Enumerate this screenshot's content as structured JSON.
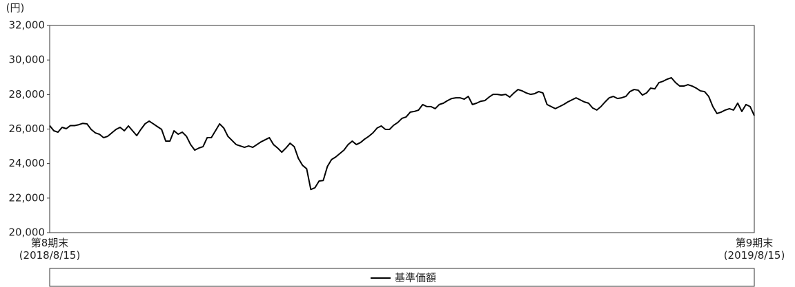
{
  "chart_data": {
    "type": "line",
    "y_label": "(円)",
    "categories": [
      "第8期末\n(2018/8/15)",
      null,
      null,
      null,
      null,
      null,
      null,
      null,
      null,
      null,
      null,
      null,
      null,
      null,
      null,
      null,
      null,
      null,
      null,
      null,
      null,
      null,
      null,
      null,
      null,
      null,
      null,
      null,
      null,
      null,
      null,
      null,
      null,
      null,
      null,
      null,
      null,
      null,
      null,
      null,
      null,
      null,
      null,
      null,
      null,
      null,
      null,
      null,
      null,
      null,
      null,
      null,
      null,
      null,
      null,
      null,
      null,
      null,
      null,
      null,
      null,
      null,
      null,
      null,
      null,
      null,
      null,
      null,
      null,
      null,
      null,
      null,
      null,
      null,
      null,
      null,
      null,
      null,
      null,
      null,
      null,
      null,
      null,
      null,
      null,
      null,
      null,
      null,
      null,
      null,
      null,
      null,
      null,
      null,
      null,
      null,
      null,
      null,
      null,
      null,
      null,
      null,
      null,
      null,
      null,
      null,
      null,
      null,
      null,
      null,
      null,
      null,
      null,
      null,
      null,
      null,
      null,
      null,
      null,
      null,
      null,
      null,
      null,
      null,
      null,
      null,
      null,
      null,
      null,
      null,
      null,
      null,
      null,
      null,
      null,
      null,
      null,
      null,
      null,
      null,
      null,
      null,
      null,
      null,
      null,
      null,
      null,
      null,
      null,
      null,
      null,
      null,
      null,
      null,
      null,
      null,
      null,
      null,
      null,
      null,
      null,
      null,
      null,
      null,
      null,
      null,
      null,
      null,
      null,
      null,
      "第9期末\n(2019/8/15)"
    ],
    "series": [
      {
        "name": "基準価額",
        "color": "#000000",
        "values": [
          26200,
          25900,
          25820,
          26100,
          26020,
          26200,
          26200,
          26250,
          26330,
          26300,
          25980,
          25780,
          25700,
          25500,
          25580,
          25780,
          25980,
          26100,
          25900,
          26180,
          25900,
          25620,
          25980,
          26300,
          26460,
          26300,
          26140,
          25980,
          25300,
          25300,
          25900,
          25700,
          25820,
          25580,
          25100,
          24780,
          24900,
          24980,
          25500,
          25500,
          25900,
          26300,
          26060,
          25580,
          25340,
          25100,
          25020,
          24940,
          25020,
          24940,
          25100,
          25260,
          25380,
          25500,
          25100,
          24900,
          24660,
          24900,
          25180,
          24980,
          24300,
          23900,
          23700,
          22500,
          22600,
          22990,
          23020,
          23830,
          24230,
          24380,
          24580,
          24780,
          25100,
          25300,
          25100,
          25220,
          25420,
          25580,
          25780,
          26060,
          26180,
          25980,
          25980,
          26220,
          26380,
          26620,
          26700,
          26980,
          27020,
          27100,
          27420,
          27300,
          27300,
          27180,
          27420,
          27500,
          27650,
          27770,
          27810,
          27810,
          27730,
          27890,
          27420,
          27500,
          27610,
          27650,
          27850,
          28010,
          28010,
          27970,
          28010,
          27850,
          28090,
          28290,
          28210,
          28090,
          28010,
          28050,
          28170,
          28090,
          27420,
          27300,
          27180,
          27300,
          27420,
          27570,
          27690,
          27810,
          27690,
          27570,
          27500,
          27220,
          27100,
          27300,
          27570,
          27810,
          27890,
          27770,
          27810,
          27890,
          28170,
          28290,
          28250,
          27970,
          28090,
          28370,
          28330,
          28690,
          28770,
          28890,
          28970,
          28690,
          28490,
          28490,
          28570,
          28490,
          28370,
          28210,
          28170,
          27890,
          27300,
          26900,
          26980,
          27100,
          27180,
          27100,
          27500,
          27020,
          27420,
          27300,
          26780
        ]
      }
    ],
    "ylim": [
      20000,
      32000
    ],
    "yticks": [
      {
        "value": 20000,
        "label": "20,000"
      },
      {
        "value": 22000,
        "label": "22,000"
      },
      {
        "value": 24000,
        "label": "24,000"
      },
      {
        "value": 26000,
        "label": "26,000"
      },
      {
        "value": 28000,
        "label": "28,000"
      },
      {
        "value": 30000,
        "label": "30,000"
      },
      {
        "value": 32000,
        "label": "32,000"
      }
    ],
    "legend": "bottom"
  }
}
